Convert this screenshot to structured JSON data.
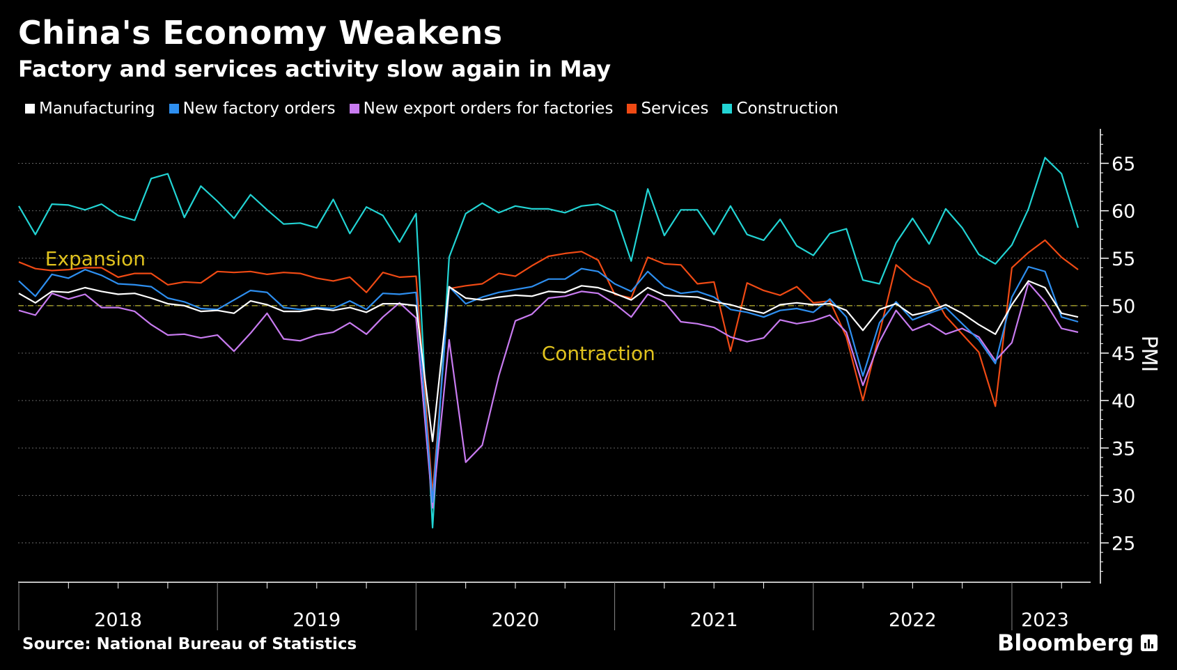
{
  "header": {
    "title": "China's Economy Weakens",
    "subtitle": "Factory and services activity slow again in May"
  },
  "footer": {
    "source": "Source: National Bureau of Statistics",
    "brand": "Bloomberg"
  },
  "chart_data": {
    "type": "line",
    "title": "China's Economy Weakens",
    "subtitle": "Factory and services activity slow again in May",
    "ylabel": "PMI",
    "ylim": [
      21,
      69
    ],
    "yticks": [
      25,
      30,
      35,
      40,
      45,
      50,
      55,
      60,
      65
    ],
    "x_start": "2018-01",
    "x_end": "2023-05",
    "year_labels": [
      "2018",
      "2019",
      "2020",
      "2021",
      "2022",
      "2023"
    ],
    "reference_line": {
      "value": 50,
      "color": "#a09a2a"
    },
    "annotations": [
      {
        "text": "Expansion",
        "x_index": 1,
        "y": 55
      },
      {
        "text": "Contraction",
        "x_index": 31,
        "y": 45
      }
    ],
    "legend_position": "top",
    "series": [
      {
        "name": "Manufacturing",
        "color": "#ffffff",
        "values": [
          51.3,
          50.3,
          51.5,
          51.4,
          51.9,
          51.5,
          51.2,
          51.3,
          50.8,
          50.2,
          50.0,
          49.4,
          49.5,
          49.2,
          50.5,
          50.1,
          49.4,
          49.4,
          49.7,
          49.5,
          49.8,
          49.3,
          50.2,
          50.2,
          50.0,
          35.7,
          52.0,
          50.8,
          50.6,
          50.9,
          51.1,
          51.0,
          51.5,
          51.4,
          52.1,
          51.9,
          51.3,
          50.6,
          51.9,
          51.1,
          51.0,
          50.9,
          50.4,
          50.1,
          49.6,
          49.2,
          50.1,
          50.3,
          50.1,
          50.2,
          49.5,
          47.4,
          49.6,
          50.2,
          49.0,
          49.4,
          50.1,
          49.2,
          48.0,
          47.0,
          50.1,
          52.6,
          51.9,
          49.2,
          48.8
        ]
      },
      {
        "name": "New factory orders",
        "color": "#2e8ff0",
        "values": [
          52.6,
          51.0,
          53.3,
          52.9,
          53.8,
          53.2,
          52.3,
          52.2,
          52.0,
          50.8,
          50.4,
          49.7,
          49.6,
          50.6,
          51.6,
          51.4,
          49.8,
          49.6,
          49.8,
          49.7,
          50.5,
          49.6,
          51.3,
          51.2,
          51.4,
          29.3,
          52.0,
          50.2,
          50.9,
          51.4,
          51.7,
          52.0,
          52.8,
          52.8,
          53.9,
          53.6,
          52.3,
          51.5,
          53.6,
          52.0,
          51.3,
          51.5,
          50.9,
          49.6,
          49.3,
          48.8,
          49.5,
          49.7,
          49.3,
          50.7,
          48.8,
          42.6,
          48.2,
          50.4,
          48.5,
          49.2,
          49.8,
          48.1,
          46.4,
          43.9,
          50.9,
          54.1,
          53.6,
          48.8,
          48.3
        ]
      },
      {
        "name": "New export orders for factories",
        "color": "#c87bf0",
        "values": [
          49.5,
          49.0,
          51.3,
          50.7,
          51.2,
          49.8,
          49.8,
          49.4,
          48.0,
          46.9,
          47.0,
          46.6,
          46.9,
          45.2,
          47.1,
          49.2,
          46.5,
          46.3,
          46.9,
          47.2,
          48.2,
          47.0,
          48.8,
          50.3,
          48.7,
          28.7,
          46.4,
          33.5,
          35.3,
          42.6,
          48.4,
          49.1,
          50.8,
          51.0,
          51.5,
          51.3,
          50.2,
          48.8,
          51.2,
          50.4,
          48.3,
          48.1,
          47.7,
          46.7,
          46.2,
          46.6,
          48.5,
          48.1,
          48.4,
          49.0,
          47.2,
          41.6,
          46.2,
          49.5,
          47.4,
          48.1,
          47.0,
          47.6,
          46.7,
          44.2,
          46.1,
          52.4,
          50.4,
          47.6,
          47.2
        ]
      },
      {
        "name": "Services",
        "color": "#f04a14",
        "values": [
          54.6,
          53.9,
          53.7,
          53.8,
          54.0,
          54.0,
          53.0,
          53.4,
          53.4,
          52.2,
          52.5,
          52.4,
          53.6,
          53.5,
          53.6,
          53.3,
          53.5,
          53.4,
          52.9,
          52.6,
          53.0,
          51.4,
          53.5,
          53.0,
          53.1,
          30.1,
          51.8,
          52.1,
          52.3,
          53.4,
          53.1,
          54.2,
          55.2,
          55.5,
          55.7,
          54.8,
          51.2,
          50.8,
          55.1,
          54.4,
          54.3,
          52.3,
          52.5,
          45.2,
          52.4,
          51.6,
          51.1,
          52.0,
          50.3,
          50.5,
          46.7,
          40.0,
          47.1,
          54.3,
          52.8,
          51.9,
          48.9,
          47.0,
          45.1,
          39.4,
          54.0,
          55.6,
          56.9,
          55.1,
          53.8
        ]
      },
      {
        "name": "Construction",
        "color": "#22d4d4",
        "values": [
          60.5,
          57.5,
          60.7,
          60.6,
          60.1,
          60.7,
          59.5,
          59.0,
          63.4,
          63.9,
          59.3,
          62.6,
          61.0,
          59.2,
          61.7,
          60.1,
          58.6,
          58.7,
          58.2,
          61.2,
          57.6,
          60.4,
          59.5,
          56.7,
          59.7,
          26.6,
          55.1,
          59.7,
          60.8,
          59.8,
          60.5,
          60.2,
          60.2,
          59.8,
          60.5,
          60.7,
          59.9,
          54.7,
          62.3,
          57.4,
          60.1,
          60.1,
          57.5,
          60.5,
          57.5,
          56.9,
          59.1,
          56.3,
          55.3,
          57.6,
          58.1,
          52.7,
          52.3,
          56.6,
          59.2,
          56.5,
          60.2,
          58.2,
          55.4,
          54.4,
          56.4,
          60.2,
          65.6,
          63.9,
          58.2
        ]
      }
    ]
  }
}
